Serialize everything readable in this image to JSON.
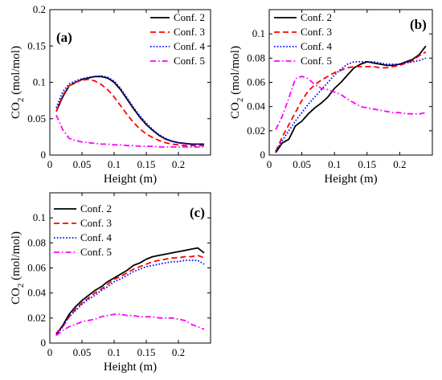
{
  "chart_data": [
    {
      "type": "line",
      "panel_label": "(a)",
      "xlabel": "Height (m)",
      "ylabel": "CO",
      "ylabel_sub": "2",
      "ylabel_unit": " (mol/mol)",
      "xlim": [
        0,
        0.25
      ],
      "ylim": [
        0,
        0.2
      ],
      "xticks": [
        0,
        0.05,
        0.1,
        0.15,
        0.2
      ],
      "xtick_labels": [
        "0",
        "0.05",
        "0.1",
        "0.15",
        "0.2"
      ],
      "yticks": [
        0,
        0.05,
        0.1,
        0.15,
        0.2
      ],
      "ytick_labels": [
        "0",
        "0.05",
        "0.1",
        "0.15",
        "0.2"
      ],
      "legend_position": "top-right",
      "series": [
        {
          "name": "Conf. 2",
          "color": "#000000",
          "dash": "solid",
          "x": [
            0.01,
            0.02,
            0.03,
            0.04,
            0.05,
            0.06,
            0.07,
            0.08,
            0.09,
            0.1,
            0.11,
            0.12,
            0.13,
            0.14,
            0.15,
            0.16,
            0.17,
            0.18,
            0.19,
            0.2,
            0.21,
            0.22,
            0.23,
            0.24
          ],
          "y": [
            0.06,
            0.08,
            0.095,
            0.1,
            0.104,
            0.106,
            0.108,
            0.108,
            0.106,
            0.1,
            0.09,
            0.077,
            0.064,
            0.052,
            0.042,
            0.034,
            0.027,
            0.022,
            0.019,
            0.017,
            0.016,
            0.015,
            0.015,
            0.015
          ]
        },
        {
          "name": "Conf. 3",
          "color": "#ff0000",
          "dash": "dashed",
          "x": [
            0.01,
            0.02,
            0.03,
            0.04,
            0.05,
            0.06,
            0.07,
            0.08,
            0.09,
            0.1,
            0.11,
            0.12,
            0.13,
            0.14,
            0.15,
            0.16,
            0.17,
            0.18,
            0.19,
            0.2,
            0.21,
            0.22,
            0.23,
            0.24
          ],
          "y": [
            0.06,
            0.082,
            0.095,
            0.1,
            0.103,
            0.104,
            0.102,
            0.097,
            0.09,
            0.08,
            0.068,
            0.056,
            0.045,
            0.036,
            0.029,
            0.024,
            0.02,
            0.017,
            0.015,
            0.014,
            0.013,
            0.013,
            0.013,
            0.013
          ]
        },
        {
          "name": "Conf. 4",
          "color": "#0000ff",
          "dash": "dotted",
          "x": [
            0.01,
            0.02,
            0.03,
            0.04,
            0.05,
            0.06,
            0.07,
            0.08,
            0.09,
            0.1,
            0.11,
            0.12,
            0.13,
            0.14,
            0.15,
            0.16,
            0.17,
            0.18,
            0.19,
            0.2,
            0.21,
            0.22,
            0.23,
            0.24
          ],
          "y": [
            0.065,
            0.087,
            0.098,
            0.102,
            0.105,
            0.107,
            0.108,
            0.109,
            0.107,
            0.102,
            0.092,
            0.079,
            0.066,
            0.054,
            0.044,
            0.035,
            0.028,
            0.023,
            0.019,
            0.017,
            0.016,
            0.015,
            0.015,
            0.015
          ]
        },
        {
          "name": "Conf. 5",
          "color": "#ff00ff",
          "dash": "dashdot",
          "x": [
            0.01,
            0.02,
            0.03,
            0.04,
            0.05,
            0.06,
            0.07,
            0.08,
            0.09,
            0.1,
            0.11,
            0.12,
            0.13,
            0.14,
            0.15,
            0.16,
            0.17,
            0.18,
            0.19,
            0.2,
            0.21,
            0.22,
            0.23,
            0.24
          ],
          "y": [
            0.055,
            0.035,
            0.023,
            0.02,
            0.018,
            0.017,
            0.016,
            0.015,
            0.015,
            0.014,
            0.014,
            0.013,
            0.013,
            0.012,
            0.012,
            0.012,
            0.011,
            0.011,
            0.011,
            0.011,
            0.011,
            0.011,
            0.011,
            0.011
          ]
        }
      ]
    },
    {
      "type": "line",
      "panel_label": "(b)",
      "xlabel": "Height (m)",
      "ylabel": "CO",
      "ylabel_sub": "2",
      "ylabel_unit": " (mol/mol)",
      "xlim": [
        0,
        0.25
      ],
      "ylim": [
        0,
        0.12
      ],
      "xticks": [
        0,
        0.05,
        0.1,
        0.15,
        0.2
      ],
      "xtick_labels": [
        "0",
        "0.05",
        "0.1",
        "0.15",
        "0.2"
      ],
      "yticks": [
        0,
        0.02,
        0.04,
        0.06,
        0.08,
        0.1
      ],
      "ytick_labels": [
        "0",
        "0.02",
        "0.04",
        "0.06",
        "0.08",
        "0.1"
      ],
      "legend_position": "top-left",
      "series": [
        {
          "name": "Conf. 2",
          "color": "#000000",
          "dash": "solid",
          "x": [
            0.01,
            0.02,
            0.03,
            0.04,
            0.05,
            0.06,
            0.07,
            0.08,
            0.09,
            0.1,
            0.11,
            0.12,
            0.13,
            0.14,
            0.15,
            0.16,
            0.17,
            0.18,
            0.19,
            0.2,
            0.21,
            0.22,
            0.23,
            0.24
          ],
          "y": [
            0.002,
            0.01,
            0.013,
            0.024,
            0.028,
            0.034,
            0.039,
            0.043,
            0.048,
            0.055,
            0.06,
            0.066,
            0.072,
            0.075,
            0.077,
            0.076,
            0.075,
            0.074,
            0.074,
            0.075,
            0.077,
            0.079,
            0.083,
            0.09
          ]
        },
        {
          "name": "Conf. 3",
          "color": "#ff0000",
          "dash": "dashed",
          "x": [
            0.01,
            0.02,
            0.03,
            0.04,
            0.05,
            0.06,
            0.07,
            0.08,
            0.09,
            0.1,
            0.11,
            0.12,
            0.13,
            0.14,
            0.15,
            0.16,
            0.17,
            0.18,
            0.19,
            0.2,
            0.21,
            0.22,
            0.23,
            0.24
          ],
          "y": [
            0.003,
            0.015,
            0.025,
            0.035,
            0.045,
            0.053,
            0.058,
            0.062,
            0.065,
            0.068,
            0.07,
            0.072,
            0.073,
            0.073,
            0.073,
            0.073,
            0.072,
            0.072,
            0.073,
            0.074,
            0.076,
            0.078,
            0.082,
            0.085
          ]
        },
        {
          "name": "Conf. 4",
          "color": "#0000ff",
          "dash": "dotted",
          "x": [
            0.01,
            0.02,
            0.03,
            0.04,
            0.05,
            0.06,
            0.07,
            0.08,
            0.09,
            0.1,
            0.11,
            0.12,
            0.13,
            0.14,
            0.15,
            0.16,
            0.17,
            0.18,
            0.19,
            0.2,
            0.21,
            0.22,
            0.23,
            0.24
          ],
          "y": [
            0.003,
            0.012,
            0.02,
            0.028,
            0.035,
            0.042,
            0.048,
            0.054,
            0.06,
            0.066,
            0.071,
            0.075,
            0.077,
            0.077,
            0.077,
            0.077,
            0.076,
            0.075,
            0.075,
            0.075,
            0.076,
            0.077,
            0.078,
            0.08
          ]
        },
        {
          "name": "Conf. 5",
          "color": "#ff00ff",
          "dash": "dashdot",
          "x": [
            0.01,
            0.02,
            0.03,
            0.04,
            0.05,
            0.06,
            0.07,
            0.08,
            0.09,
            0.1,
            0.11,
            0.12,
            0.13,
            0.14,
            0.15,
            0.16,
            0.17,
            0.18,
            0.19,
            0.2,
            0.21,
            0.22,
            0.23,
            0.24
          ],
          "y": [
            0.021,
            0.032,
            0.047,
            0.063,
            0.065,
            0.063,
            0.058,
            0.055,
            0.054,
            0.052,
            0.05,
            0.046,
            0.043,
            0.04,
            0.039,
            0.038,
            0.037,
            0.036,
            0.035,
            0.035,
            0.034,
            0.034,
            0.034,
            0.035
          ]
        }
      ]
    },
    {
      "type": "line",
      "panel_label": "(c)",
      "xlabel": "Height (m)",
      "ylabel": "CO",
      "ylabel_sub": "2",
      "ylabel_unit": " (mol/mol)",
      "xlim": [
        0,
        0.25
      ],
      "ylim": [
        0,
        0.12
      ],
      "xticks": [
        0,
        0.05,
        0.1,
        0.15,
        0.2
      ],
      "xtick_labels": [
        "0",
        "0.05",
        "0.1",
        "0.15",
        "0.2"
      ],
      "yticks": [
        0,
        0.02,
        0.04,
        0.06,
        0.08,
        0.1
      ],
      "ytick_labels": [
        "0",
        "0.02",
        "0.04",
        "0.06",
        "0.08",
        "0.1"
      ],
      "legend_position": "top-left",
      "series": [
        {
          "name": "Conf. 2",
          "color": "#000000",
          "dash": "solid",
          "x": [
            0.01,
            0.02,
            0.03,
            0.04,
            0.05,
            0.06,
            0.07,
            0.08,
            0.09,
            0.1,
            0.11,
            0.12,
            0.13,
            0.14,
            0.15,
            0.16,
            0.17,
            0.18,
            0.19,
            0.2,
            0.21,
            0.22,
            0.23,
            0.24
          ],
          "y": [
            0.007,
            0.014,
            0.023,
            0.029,
            0.034,
            0.038,
            0.042,
            0.045,
            0.049,
            0.052,
            0.055,
            0.058,
            0.062,
            0.064,
            0.067,
            0.069,
            0.07,
            0.071,
            0.072,
            0.073,
            0.074,
            0.075,
            0.076,
            0.072
          ]
        },
        {
          "name": "Conf. 3",
          "color": "#ff0000",
          "dash": "dashed",
          "x": [
            0.01,
            0.02,
            0.03,
            0.04,
            0.05,
            0.06,
            0.07,
            0.08,
            0.09,
            0.1,
            0.11,
            0.12,
            0.13,
            0.14,
            0.15,
            0.16,
            0.17,
            0.18,
            0.19,
            0.2,
            0.21,
            0.22,
            0.23,
            0.24
          ],
          "y": [
            0.008,
            0.013,
            0.021,
            0.027,
            0.032,
            0.036,
            0.04,
            0.043,
            0.047,
            0.051,
            0.053,
            0.056,
            0.059,
            0.061,
            0.063,
            0.065,
            0.066,
            0.067,
            0.068,
            0.068,
            0.069,
            0.069,
            0.07,
            0.068
          ]
        },
        {
          "name": "Conf. 4",
          "color": "#0000ff",
          "dash": "dotted",
          "x": [
            0.01,
            0.02,
            0.03,
            0.04,
            0.05,
            0.06,
            0.07,
            0.08,
            0.09,
            0.1,
            0.11,
            0.12,
            0.13,
            0.14,
            0.15,
            0.16,
            0.17,
            0.18,
            0.19,
            0.2,
            0.21,
            0.22,
            0.23,
            0.24
          ],
          "y": [
            0.006,
            0.013,
            0.021,
            0.026,
            0.031,
            0.035,
            0.038,
            0.042,
            0.045,
            0.049,
            0.051,
            0.054,
            0.057,
            0.059,
            0.061,
            0.062,
            0.063,
            0.064,
            0.065,
            0.065,
            0.066,
            0.066,
            0.066,
            0.063
          ]
        },
        {
          "name": "Conf. 5",
          "color": "#ff00ff",
          "dash": "dashdot",
          "x": [
            0.01,
            0.02,
            0.03,
            0.04,
            0.05,
            0.06,
            0.07,
            0.08,
            0.09,
            0.1,
            0.11,
            0.12,
            0.13,
            0.14,
            0.15,
            0.16,
            0.17,
            0.18,
            0.19,
            0.2,
            0.21,
            0.22,
            0.23,
            0.24
          ],
          "y": [
            0.006,
            0.01,
            0.013,
            0.015,
            0.017,
            0.018,
            0.019,
            0.021,
            0.022,
            0.023,
            0.023,
            0.022,
            0.022,
            0.021,
            0.021,
            0.021,
            0.02,
            0.02,
            0.02,
            0.019,
            0.018,
            0.015,
            0.013,
            0.011
          ]
        }
      ]
    }
  ]
}
